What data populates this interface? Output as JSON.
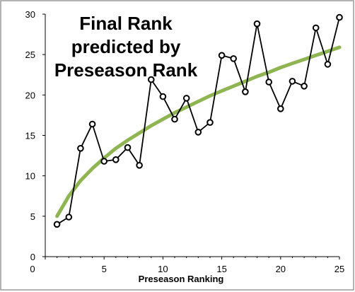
{
  "chart_data": {
    "type": "line",
    "title_lines": [
      "Final Rank",
      "predicted by",
      "Preseason Rank"
    ],
    "xlabel": "Preseason Ranking",
    "ylabel": "",
    "xlim": [
      0,
      25
    ],
    "ylim": [
      0,
      30
    ],
    "x_ticks": [
      0,
      5,
      10,
      15,
      20,
      25
    ],
    "y_ticks": [
      0,
      5,
      10,
      15,
      20,
      25,
      30
    ],
    "x_tick_labels": [
      "0",
      "5",
      "10",
      "15",
      "20",
      "25"
    ],
    "y_tick_labels": [
      "0",
      "5",
      "10",
      "15",
      "20",
      "25",
      "30"
    ],
    "grid": false,
    "legend": "none",
    "series": [
      {
        "style": "line-with-markers",
        "color": "#000000",
        "x": [
          1,
          2,
          3,
          4,
          5,
          6,
          7,
          8,
          9,
          10,
          11,
          12,
          13,
          14,
          15,
          16,
          17,
          18,
          19,
          20,
          21,
          22,
          23,
          24,
          25
        ],
        "y": [
          4.0,
          4.9,
          13.4,
          16.4,
          11.8,
          12.0,
          13.5,
          11.3,
          21.9,
          19.8,
          17.0,
          19.6,
          15.4,
          16.6,
          24.9,
          24.5,
          20.4,
          28.8,
          21.6,
          18.3,
          21.7,
          21.1,
          28.3,
          23.8,
          29.6
        ]
      },
      {
        "style": "trendline",
        "color": "#8fb552",
        "x": [
          1,
          2,
          3,
          4,
          5,
          6,
          7,
          8,
          9,
          10,
          11,
          12,
          13,
          14,
          15,
          16,
          17,
          18,
          19,
          20,
          21,
          22,
          23,
          24,
          25
        ],
        "y": [
          5.0,
          7.5,
          9.4,
          10.9,
          12.2,
          13.4,
          14.4,
          15.3,
          16.2,
          17.0,
          17.8,
          18.5,
          19.2,
          19.9,
          20.5,
          21.1,
          21.7,
          22.3,
          22.8,
          23.4,
          23.9,
          24.4,
          24.9,
          25.4,
          25.9
        ]
      }
    ]
  }
}
